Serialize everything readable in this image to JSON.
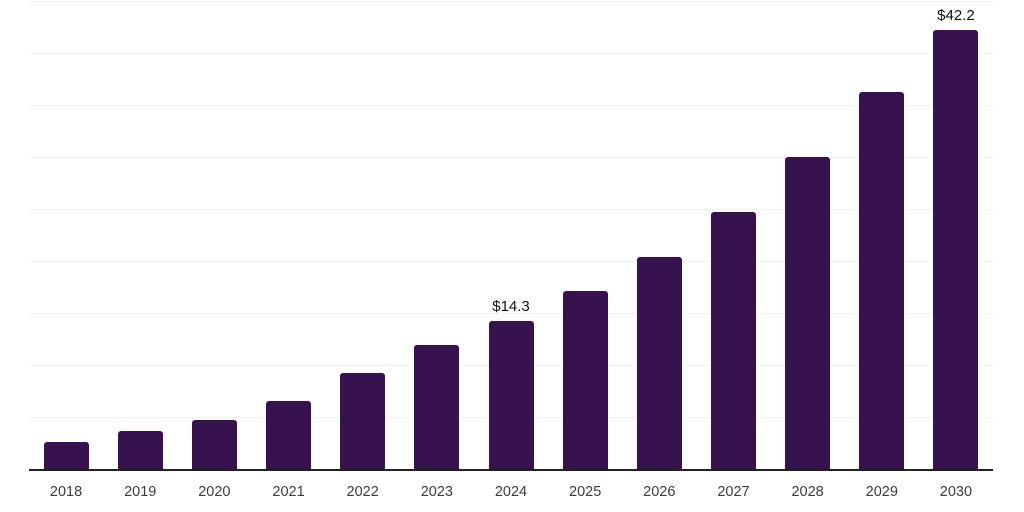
{
  "chart_data": {
    "type": "bar",
    "title": "",
    "xlabel": "",
    "ylabel": "",
    "categories": [
      "2018",
      "2019",
      "2020",
      "2021",
      "2022",
      "2023",
      "2024",
      "2025",
      "2026",
      "2027",
      "2028",
      "2029",
      "2030"
    ],
    "values": [
      2.7,
      3.7,
      4.8,
      6.6,
      9.3,
      12.0,
      14.3,
      17.2,
      20.4,
      24.8,
      30.0,
      36.3,
      42.2
    ],
    "value_labels": [
      {
        "category": "2024",
        "text": "$14.3"
      },
      {
        "category": "2030",
        "text": "$42.2"
      }
    ],
    "ylim": [
      0,
      45
    ],
    "grid_step": 5,
    "grid": "horizontal-only",
    "legend": "none",
    "y_axis_tick_labels_visible": false,
    "colors": {
      "bar": "#36124E",
      "gridline": "#f2f2f2",
      "axis_line": "#222222",
      "tick_label": "#3c3c3c",
      "value_label": "#111111",
      "background": "#ffffff"
    }
  }
}
